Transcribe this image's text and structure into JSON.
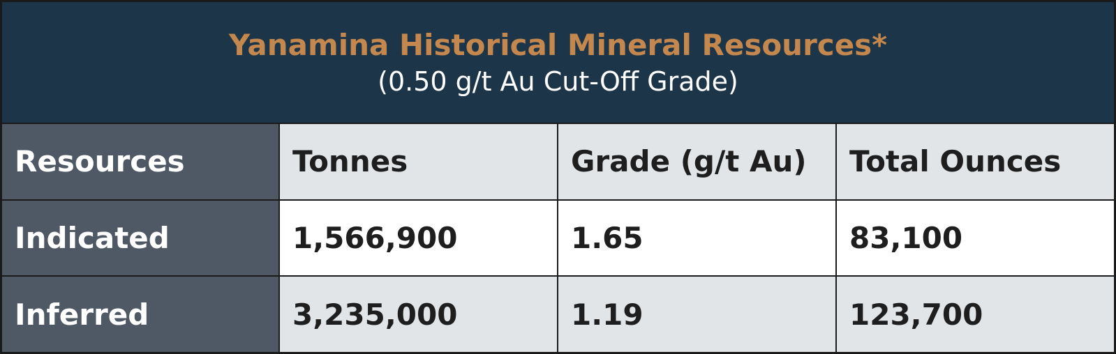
{
  "header": {
    "title": "Yanamina Historical Mineral Resources*",
    "subtitle": "(0.50 g/t Au Cut-Off Grade)"
  },
  "table": {
    "columns": [
      "Resources",
      "Tonnes",
      "Grade (g/t Au)",
      "Total Ounces"
    ],
    "rows": [
      [
        "Indicated",
        "1,566,900",
        "1.65",
        "83,100"
      ],
      [
        "Inferred",
        "3,235,000",
        "1.19",
        "123,700"
      ]
    ]
  }
}
